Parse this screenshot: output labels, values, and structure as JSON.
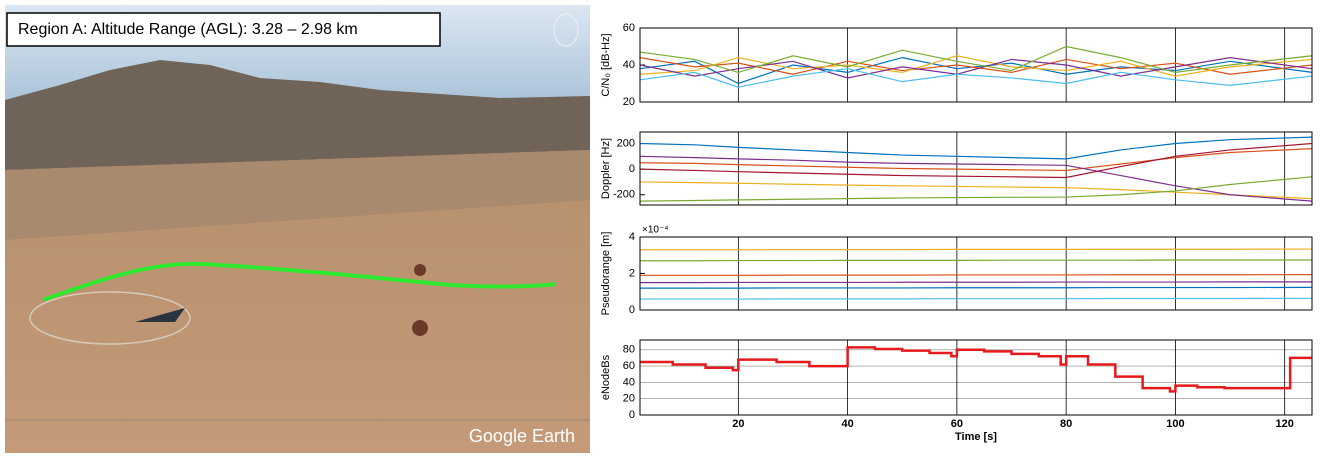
{
  "image": {
    "label": "Region A: Altitude Range (AGL): 3.28 – 2.98 km",
    "watermark": "Google Earth"
  },
  "chart_data": [
    {
      "type": "line",
      "y_label": "C/N₀ [dB-Hz]",
      "xlim": [
        2,
        125
      ],
      "xticks": [
        20,
        40,
        60,
        80,
        100,
        120
      ],
      "show_xtick_labels": false,
      "ylim": [
        20,
        60
      ],
      "yticks": [
        20,
        40,
        60
      ],
      "grid": false,
      "x": [
        2,
        12,
        20,
        30,
        40,
        50,
        60,
        70,
        80,
        90,
        100,
        110,
        125
      ],
      "series": [
        {
          "color": "#0072bd",
          "values": [
            38,
            42,
            30,
            40,
            36,
            44,
            38,
            41,
            35,
            39,
            37,
            42,
            36
          ]
        },
        {
          "color": "#d95319",
          "values": [
            44,
            39,
            41,
            35,
            42,
            37,
            40,
            36,
            43,
            38,
            41,
            35,
            40
          ]
        },
        {
          "color": "#edb120",
          "values": [
            35,
            37,
            44,
            38,
            40,
            36,
            45,
            39,
            37,
            42,
            34,
            39,
            43
          ]
        },
        {
          "color": "#7e2f8e",
          "values": [
            40,
            34,
            38,
            42,
            33,
            39,
            35,
            43,
            40,
            34,
            39,
            44,
            38
          ]
        },
        {
          "color": "#77ac30",
          "values": [
            47,
            43,
            36,
            45,
            39,
            48,
            42,
            37,
            50,
            44,
            36,
            40,
            45
          ]
        },
        {
          "color": "#4dbeee",
          "values": [
            32,
            36,
            28,
            34,
            38,
            31,
            35,
            33,
            30,
            36,
            32,
            29,
            34
          ]
        }
      ]
    },
    {
      "type": "line",
      "y_label": "Doppler [Hz]",
      "xlim": [
        2,
        125
      ],
      "xticks": [
        20,
        40,
        60,
        80,
        100,
        120
      ],
      "show_xtick_labels": false,
      "ylim": [
        -280,
        290
      ],
      "yticks": [
        -200,
        0,
        200
      ],
      "grid": false,
      "x": [
        2,
        12,
        20,
        30,
        40,
        50,
        60,
        70,
        80,
        90,
        100,
        110,
        125
      ],
      "series": [
        {
          "color": "#0072bd",
          "values": [
            200,
            190,
            170,
            150,
            130,
            110,
            100,
            90,
            80,
            150,
            200,
            230,
            250
          ]
        },
        {
          "color": "#d95319",
          "values": [
            50,
            45,
            35,
            25,
            15,
            5,
            0,
            -5,
            -10,
            40,
            90,
            130,
            160
          ]
        },
        {
          "color": "#edb120",
          "values": [
            -100,
            -105,
            -110,
            -118,
            -125,
            -130,
            -135,
            -140,
            -145,
            -160,
            -180,
            -200,
            -230
          ]
        },
        {
          "color": "#7e2f8e",
          "values": [
            100,
            90,
            80,
            70,
            55,
            45,
            40,
            35,
            30,
            -50,
            -130,
            -200,
            -250
          ]
        },
        {
          "color": "#77ac30",
          "values": [
            -250,
            -245,
            -240,
            -235,
            -230,
            -225,
            -222,
            -220,
            -218,
            -200,
            -170,
            -120,
            -60
          ]
        },
        {
          "color": "#a2142f",
          "values": [
            0,
            -10,
            -20,
            -30,
            -40,
            -50,
            -55,
            -60,
            -65,
            20,
            100,
            150,
            200
          ]
        }
      ]
    },
    {
      "type": "line",
      "y_label": "Pseudorange [m]",
      "y_exponent": "×10⁻⁴",
      "xlim": [
        2,
        125
      ],
      "xticks": [
        20,
        40,
        60,
        80,
        100,
        120
      ],
      "show_xtick_labels": false,
      "ylim": [
        0,
        4
      ],
      "yticks": [
        0,
        2,
        4
      ],
      "grid": false,
      "x": [
        2,
        12,
        20,
        30,
        40,
        50,
        60,
        70,
        80,
        90,
        100,
        110,
        125
      ],
      "series": [
        {
          "color": "#edb120",
          "values": [
            3.3,
            3.3,
            3.3,
            3.31,
            3.31,
            3.31,
            3.32,
            3.32,
            3.32,
            3.33,
            3.33,
            3.33,
            3.34
          ]
        },
        {
          "color": "#77ac30",
          "values": [
            2.7,
            2.7,
            2.71,
            2.71,
            2.72,
            2.72,
            2.72,
            2.73,
            2.73,
            2.73,
            2.74,
            2.74,
            2.74
          ]
        },
        {
          "color": "#d95319",
          "values": [
            1.9,
            1.9,
            1.9,
            1.91,
            1.91,
            1.91,
            1.92,
            1.92,
            1.92,
            1.93,
            1.93,
            1.93,
            1.94
          ]
        },
        {
          "color": "#7e2f8e",
          "values": [
            1.5,
            1.5,
            1.51,
            1.51,
            1.51,
            1.52,
            1.52,
            1.52,
            1.53,
            1.53,
            1.53,
            1.54,
            1.54
          ]
        },
        {
          "color": "#0072bd",
          "values": [
            1.2,
            1.2,
            1.2,
            1.21,
            1.21,
            1.21,
            1.22,
            1.22,
            1.22,
            1.23,
            1.23,
            1.23,
            1.24
          ]
        },
        {
          "color": "#4dbeee",
          "values": [
            0.6,
            0.6,
            0.6,
            0.61,
            0.61,
            0.61,
            0.62,
            0.62,
            0.62,
            0.63,
            0.63,
            0.63,
            0.64
          ]
        }
      ]
    },
    {
      "type": "line",
      "drawstyle": "steps-post",
      "y_label": "eNodeBs",
      "x_label": "Time [s]",
      "xlim": [
        2,
        125
      ],
      "xticks": [
        20,
        40,
        60,
        80,
        100,
        120
      ],
      "show_xtick_labels": true,
      "ylim": [
        0,
        92
      ],
      "yticks": [
        0,
        20,
        40,
        60,
        80
      ],
      "grid": true,
      "x": [
        2,
        8,
        14,
        19,
        20,
        27,
        33,
        40,
        45,
        50,
        55,
        59,
        60,
        65,
        70,
        75,
        79,
        80,
        84,
        89,
        94,
        99,
        100,
        104,
        109,
        120,
        121,
        125
      ],
      "series": [
        {
          "color": "#e41a1c",
          "values": [
            65,
            62,
            58,
            55,
            68,
            65,
            60,
            83,
            81,
            79,
            76,
            72,
            80,
            78,
            75,
            72,
            62,
            72,
            62,
            47,
            33,
            29,
            36,
            34,
            33,
            33,
            70,
            70
          ]
        }
      ]
    }
  ]
}
